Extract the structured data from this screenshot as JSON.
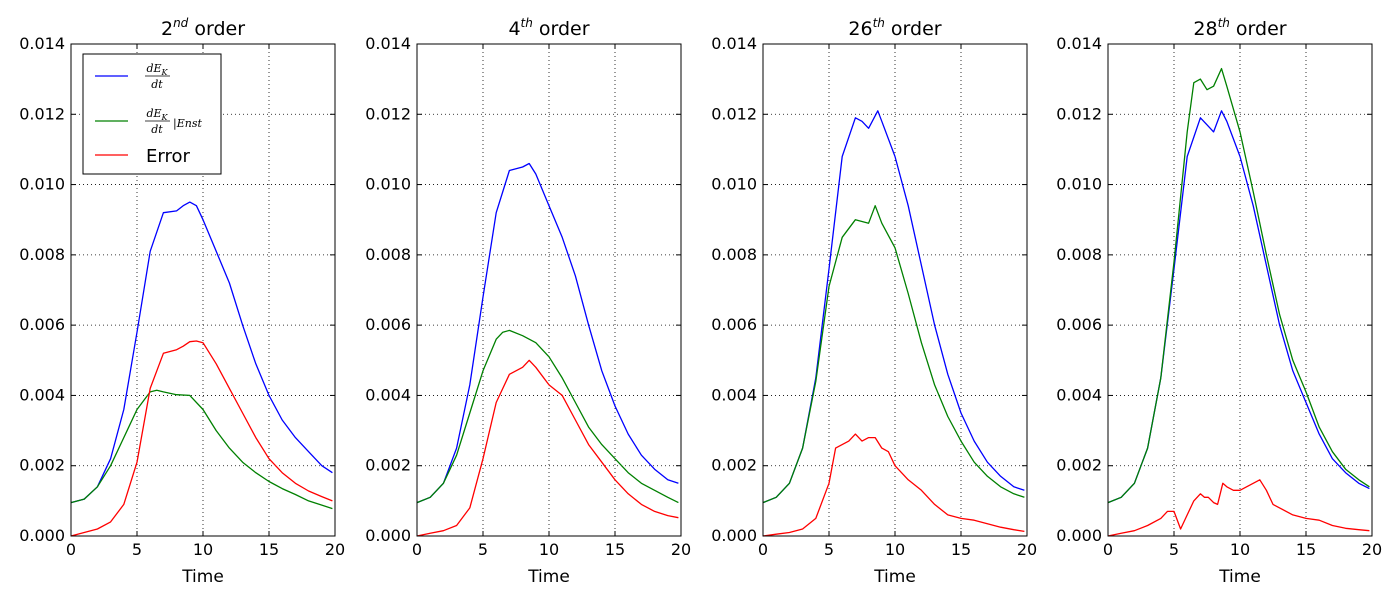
{
  "chart_data": [
    {
      "type": "line",
      "title": {
        "prefix": "2",
        "sup": "nd",
        "suffix": " order"
      },
      "xlabel": "Time",
      "ylabel": "",
      "xlim": [
        0,
        20
      ],
      "ylim": [
        0,
        0.014
      ],
      "xticks": [
        "0",
        "5",
        "10",
        "15",
        "20"
      ],
      "yticks": [
        "0.000",
        "0.002",
        "0.004",
        "0.006",
        "0.008",
        "0.010",
        "0.012",
        "0.014"
      ],
      "grid": true,
      "legend": {
        "placement": "upper-left",
        "entries": [
          {
            "series": 0,
            "kind": "frac",
            "numerator": "dE",
            "numerator_sub": "K",
            "denominator": "dt",
            "tail": ""
          },
          {
            "series": 1,
            "kind": "frac",
            "numerator": "dE",
            "numerator_sub": "K",
            "denominator": "dt",
            "tail": "|Enst"
          },
          {
            "series": 2,
            "kind": "text",
            "text": "Error"
          }
        ]
      },
      "series": [
        {
          "color": "#0000ff",
          "x": [
            0,
            1,
            2,
            3,
            4,
            5,
            6,
            7,
            8,
            8.5,
            9,
            9.5,
            10,
            11,
            12,
            13,
            14,
            15,
            16,
            17,
            18,
            19,
            19.8
          ],
          "y": [
            0.00095,
            0.00105,
            0.0014,
            0.0022,
            0.0036,
            0.0058,
            0.0081,
            0.0092,
            0.00925,
            0.0094,
            0.0095,
            0.0094,
            0.009,
            0.0081,
            0.0072,
            0.006,
            0.0049,
            0.004,
            0.0033,
            0.0028,
            0.0024,
            0.002,
            0.0018
          ]
        },
        {
          "color": "#008000",
          "x": [
            0,
            1,
            2,
            3,
            4,
            5,
            6,
            6.5,
            7,
            8,
            9,
            10,
            11,
            12,
            13,
            14,
            15,
            16,
            17,
            18,
            19,
            19.8
          ],
          "y": [
            0.00095,
            0.00105,
            0.0014,
            0.002,
            0.0028,
            0.0036,
            0.0041,
            0.00415,
            0.0041,
            0.00402,
            0.004,
            0.0036,
            0.003,
            0.0025,
            0.0021,
            0.0018,
            0.00155,
            0.00135,
            0.00118,
            0.001,
            0.00088,
            0.00078
          ]
        },
        {
          "color": "#ff0000",
          "x": [
            0,
            1,
            2,
            3,
            4,
            5,
            6,
            7,
            8,
            8.5,
            9,
            9.5,
            10,
            11,
            12,
            13,
            14,
            15,
            16,
            17,
            18,
            19,
            19.8
          ],
          "y": [
            0.0,
            0.0001,
            0.0002,
            0.0004,
            0.0009,
            0.0021,
            0.0042,
            0.0052,
            0.0053,
            0.0054,
            0.00553,
            0.00555,
            0.0055,
            0.0049,
            0.0042,
            0.0035,
            0.0028,
            0.0022,
            0.0018,
            0.0015,
            0.00128,
            0.00112,
            0.001
          ]
        }
      ]
    },
    {
      "type": "line",
      "title": {
        "prefix": "4",
        "sup": "th",
        "suffix": " order"
      },
      "xlabel": "Time",
      "ylabel": "",
      "xlim": [
        0,
        20
      ],
      "ylim": [
        0,
        0.014
      ],
      "xticks": [
        "0",
        "5",
        "10",
        "15",
        "20"
      ],
      "yticks": [
        "0.000",
        "0.002",
        "0.004",
        "0.006",
        "0.008",
        "0.010",
        "0.012",
        "0.014"
      ],
      "grid": true,
      "series": [
        {
          "color": "#0000ff",
          "x": [
            0,
            1,
            2,
            3,
            4,
            5,
            6,
            7,
            8,
            8.5,
            9,
            10,
            11,
            12,
            13,
            14,
            15,
            16,
            17,
            18,
            19,
            19.8
          ],
          "y": [
            0.00095,
            0.0011,
            0.0015,
            0.0025,
            0.0043,
            0.0068,
            0.0092,
            0.0104,
            0.0105,
            0.0106,
            0.0103,
            0.0094,
            0.0085,
            0.0074,
            0.006,
            0.0047,
            0.0037,
            0.0029,
            0.0023,
            0.0019,
            0.0016,
            0.0015
          ]
        },
        {
          "color": "#008000",
          "x": [
            0,
            1,
            2,
            3,
            4,
            5,
            6,
            6.5,
            7,
            8,
            9,
            10,
            11,
            12,
            13,
            14,
            15,
            16,
            17,
            18,
            19,
            19.8
          ],
          "y": [
            0.00095,
            0.0011,
            0.0015,
            0.0023,
            0.0035,
            0.0047,
            0.0056,
            0.0058,
            0.00585,
            0.0057,
            0.0055,
            0.0051,
            0.0045,
            0.0038,
            0.0031,
            0.0026,
            0.0022,
            0.0018,
            0.0015,
            0.0013,
            0.0011,
            0.00095
          ]
        },
        {
          "color": "#ff0000",
          "x": [
            0,
            1,
            2,
            3,
            4,
            5,
            6,
            7,
            8,
            8.5,
            9,
            10,
            11,
            12,
            13,
            14,
            15,
            16,
            17,
            18,
            19,
            19.8
          ],
          "y": [
            0.0,
            8e-05,
            0.00015,
            0.0003,
            0.0008,
            0.0022,
            0.0038,
            0.0046,
            0.0048,
            0.005,
            0.0048,
            0.0043,
            0.004,
            0.0033,
            0.0026,
            0.0021,
            0.0016,
            0.0012,
            0.0009,
            0.0007,
            0.00058,
            0.00052
          ]
        }
      ]
    },
    {
      "type": "line",
      "title": {
        "prefix": "26",
        "sup": "th",
        "suffix": " order"
      },
      "xlabel": "Time",
      "ylabel": "",
      "xlim": [
        0,
        20
      ],
      "ylim": [
        0,
        0.014
      ],
      "xticks": [
        "0",
        "5",
        "10",
        "15",
        "20"
      ],
      "yticks": [
        "0.000",
        "0.002",
        "0.004",
        "0.006",
        "0.008",
        "0.010",
        "0.012",
        "0.014"
      ],
      "grid": true,
      "series": [
        {
          "color": "#0000ff",
          "x": [
            0,
            1,
            2,
            3,
            4,
            5,
            6,
            7,
            7.5,
            8,
            8.7,
            9,
            10,
            11,
            12,
            13,
            14,
            15,
            16,
            17,
            18,
            19,
            19.8
          ],
          "y": [
            0.00095,
            0.0011,
            0.0015,
            0.0025,
            0.0045,
            0.0076,
            0.0108,
            0.0119,
            0.0118,
            0.0116,
            0.0121,
            0.0118,
            0.0108,
            0.0094,
            0.0077,
            0.006,
            0.0046,
            0.0035,
            0.0027,
            0.0021,
            0.0017,
            0.0014,
            0.0013
          ]
        },
        {
          "color": "#008000",
          "x": [
            0,
            1,
            2,
            3,
            4,
            5,
            6,
            7,
            8,
            8.5,
            9,
            10,
            11,
            12,
            13,
            14,
            15,
            16,
            17,
            18,
            19,
            19.8
          ],
          "y": [
            0.00095,
            0.0011,
            0.0015,
            0.0025,
            0.0044,
            0.0071,
            0.0085,
            0.009,
            0.0089,
            0.0094,
            0.0089,
            0.0082,
            0.0069,
            0.0055,
            0.0043,
            0.0034,
            0.0027,
            0.0021,
            0.0017,
            0.0014,
            0.0012,
            0.0011
          ]
        },
        {
          "color": "#ff0000",
          "x": [
            0,
            1,
            2,
            3,
            4,
            5,
            5.5,
            6,
            6.5,
            7,
            7.5,
            8,
            8.5,
            9,
            9.5,
            10,
            11,
            12,
            13,
            14,
            15,
            16,
            17,
            18,
            19,
            19.8
          ],
          "y": [
            0.0,
            5e-05,
            0.0001,
            0.0002,
            0.0005,
            0.0015,
            0.0025,
            0.0026,
            0.0027,
            0.0029,
            0.0027,
            0.0028,
            0.0028,
            0.0025,
            0.0024,
            0.002,
            0.0016,
            0.0013,
            0.0009,
            0.0006,
            0.0005,
            0.00045,
            0.00035,
            0.00025,
            0.00018,
            0.00013
          ]
        }
      ]
    },
    {
      "type": "line",
      "title": {
        "prefix": "28",
        "sup": "th",
        "suffix": " order"
      },
      "xlabel": "Time",
      "ylabel": "",
      "xlim": [
        0,
        20
      ],
      "ylim": [
        0,
        0.014
      ],
      "xticks": [
        "0",
        "5",
        "10",
        "15",
        "20"
      ],
      "yticks": [
        "0.000",
        "0.002",
        "0.004",
        "0.006",
        "0.008",
        "0.010",
        "0.012",
        "0.014"
      ],
      "grid": true,
      "series": [
        {
          "color": "#0000ff",
          "x": [
            0,
            1,
            2,
            3,
            4,
            5,
            6,
            7,
            7.5,
            8,
            8.6,
            9,
            10,
            11,
            12,
            13,
            14,
            15,
            16,
            17,
            18,
            19,
            19.8
          ],
          "y": [
            0.00095,
            0.0011,
            0.0015,
            0.0025,
            0.0045,
            0.0076,
            0.0108,
            0.0119,
            0.0117,
            0.0115,
            0.0121,
            0.0118,
            0.0108,
            0.0094,
            0.0077,
            0.006,
            0.0047,
            0.0038,
            0.0029,
            0.0022,
            0.0018,
            0.0015,
            0.00135
          ]
        },
        {
          "color": "#008000",
          "x": [
            0,
            1,
            2,
            3,
            4,
            5,
            6,
            6.5,
            7,
            7.5,
            8,
            8.6,
            9,
            10,
            11,
            12,
            13,
            14,
            15,
            16,
            17,
            18,
            19,
            19.8
          ],
          "y": [
            0.00095,
            0.0011,
            0.0015,
            0.0025,
            0.0045,
            0.0078,
            0.0115,
            0.0129,
            0.013,
            0.0127,
            0.0128,
            0.0133,
            0.0128,
            0.0115,
            0.0098,
            0.008,
            0.0063,
            0.005,
            0.0041,
            0.0031,
            0.0024,
            0.0019,
            0.0016,
            0.0014
          ]
        },
        {
          "color": "#ff0000",
          "x": [
            0,
            1,
            2,
            3,
            4,
            4.5,
            5,
            5.5,
            6,
            6.5,
            7,
            7.3,
            7.6,
            8,
            8.3,
            8.7,
            9,
            9.5,
            10,
            10.5,
            11,
            11.5,
            12,
            12.5,
            13,
            14,
            15,
            16,
            17,
            18,
            19,
            19.8
          ],
          "y": [
            0.0,
            8e-05,
            0.00015,
            0.0003,
            0.0005,
            0.0007,
            0.0007,
            0.0002,
            0.0006,
            0.001,
            0.0012,
            0.0011,
            0.0011,
            0.00095,
            0.0009,
            0.0015,
            0.0014,
            0.0013,
            0.0013,
            0.0014,
            0.0015,
            0.0016,
            0.0013,
            0.0009,
            0.0008,
            0.0006,
            0.0005,
            0.00045,
            0.0003,
            0.00022,
            0.00018,
            0.00015
          ]
        }
      ]
    }
  ]
}
